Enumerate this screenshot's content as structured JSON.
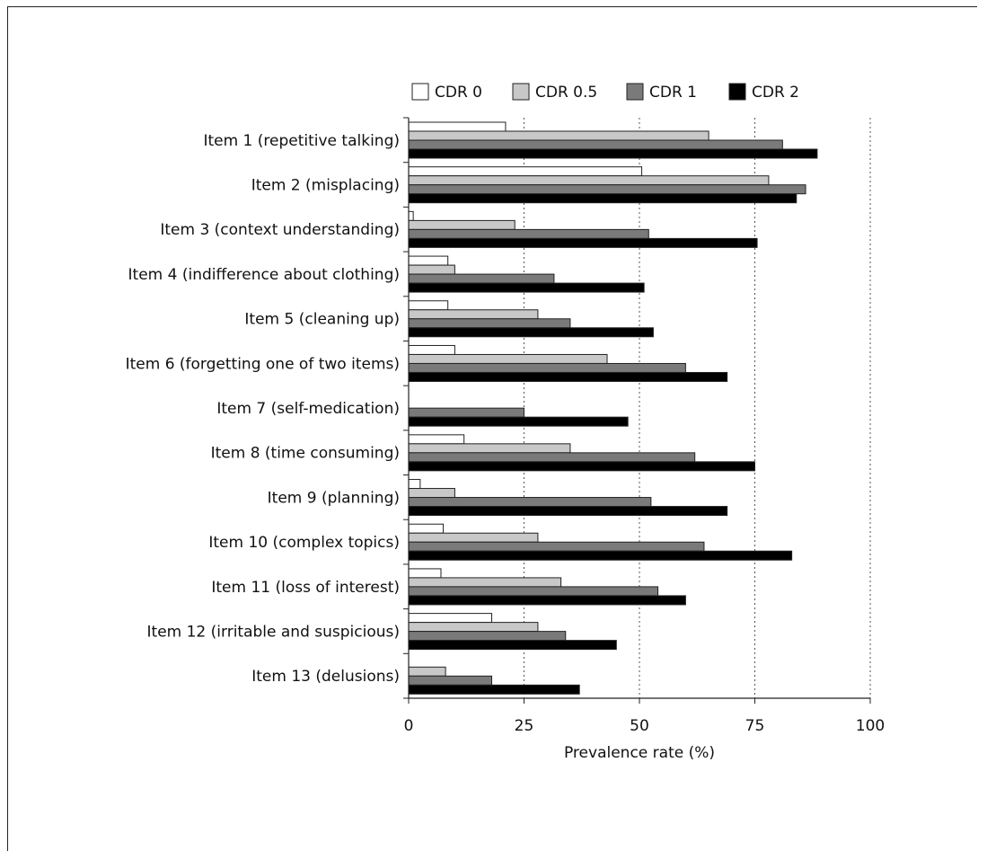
{
  "chart_data": {
    "type": "bar",
    "orientation": "horizontal",
    "title": "",
    "xlabel": "Prevalence rate (%)",
    "ylabel": "",
    "xlim": [
      0,
      100
    ],
    "xticks": [
      0,
      25,
      50,
      75,
      100
    ],
    "grid": "vertical dotted",
    "legend_position": "top",
    "categories": [
      "Item 1 (repetitive talking)",
      "Item 2 (misplacing)",
      "Item 3 (context understanding)",
      "Item 4 (indifference about clothing)",
      "Item 5 (cleaning up)",
      "Item 6 (forgetting one of two items)",
      "Item 7 (self-medication)",
      "Item 8 (time consuming)",
      "Item 9 (planning)",
      "Item 10 (complex topics)",
      "Item 11 (loss of interest)",
      "Item 12 (irritable and suspicious)",
      "Item 13 (delusions)"
    ],
    "series": [
      {
        "name": "CDR 0",
        "color": "#ffffff",
        "values": [
          21,
          50.5,
          1,
          8.5,
          8.5,
          10,
          0,
          12,
          2.5,
          7.5,
          7,
          18,
          0
        ]
      },
      {
        "name": "CDR 0.5",
        "color": "#c8c8c8",
        "values": [
          65,
          78,
          23,
          10,
          28,
          43,
          0,
          35,
          10,
          28,
          33,
          28,
          8
        ]
      },
      {
        "name": "CDR 1",
        "color": "#7a7a7a",
        "values": [
          81,
          86,
          52,
          31.5,
          35,
          60,
          25,
          62,
          52.5,
          64,
          54,
          34,
          18
        ]
      },
      {
        "name": "CDR 2",
        "color": "#000000",
        "values": [
          88.5,
          84,
          75.5,
          51,
          53,
          69,
          47.5,
          75,
          69,
          83,
          60,
          45,
          37
        ]
      }
    ],
    "series_cdr2_item7_note": ""
  }
}
